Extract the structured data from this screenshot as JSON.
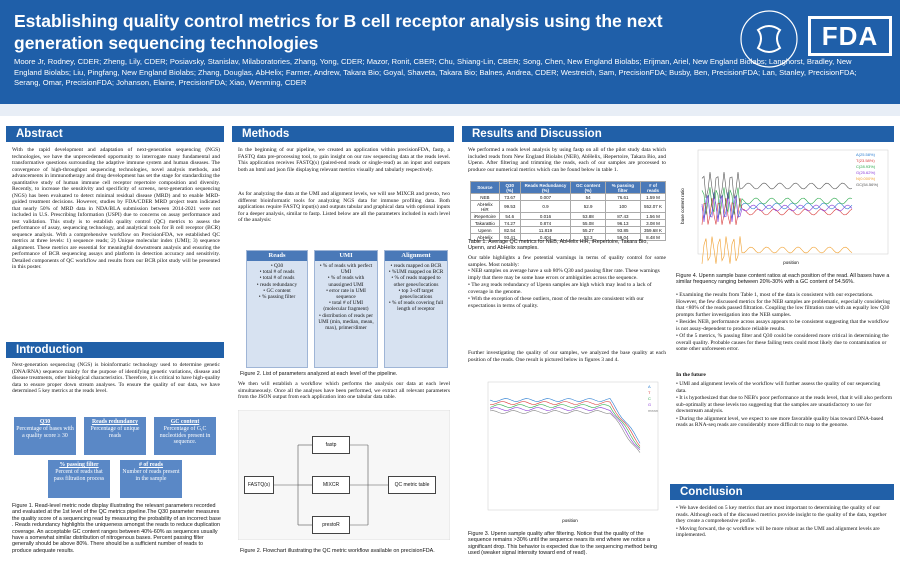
{
  "title": "Establishing quality control metrics for B cell receptor analysis using the next generation sequencing technologies",
  "authors": "Moore Jr, Rodney, CDER; Zheng, Lily, CDER; Posiavsky, Stanislav, Milaboratories, Zhang, Yong, CDER; Mazor, Ronit, CBER; Chu, Shiang-Lin, CBER; Song, Chen, New England Biolabs; Erijman, Ariel, New England Biolabs; Langhorst, Bradley, New England Biolabs; Liu, Pingfang, New England Biolabs; Zhang, Douglas, AbHelix; Farmer, Andrew, Takara Bio; Goyal, Shaveta, Takara Bio; Balnes, Andrea, CDER; Westreich, Sam, PrecisionFDA; Busby, Ben, PrecisionFDA; Lan, Stanley, PrecisionFDA; Serang, Omar, PrecisionFDA; Johanson, Elaine, PrecisionFDA; Xiao, Wenming, CDER",
  "logo": "FDA",
  "sections": {
    "abstract": "Abstract",
    "intro": "Introduction",
    "methods": "Methods",
    "results": "Results and Discussion",
    "conclusion": "Conclusion"
  },
  "abstract_text": "With the rapid development and adaptation of next-generation sequencing (NGS) technologies, we have the unprecedented opportunity to interrogate many fundamental and transformative questions surrounding the adaptive immune system and human diseases. The convergence of high-throughput sequencing technologies, novel analysis methods, and advancements in immunotherapy and drug development has set the stage for standardizing the quantitative study of human immune cell receptor repertoire composition and diversity. Recently, to increase the sensitivity and specificity of screens, next-generation sequencing (NGS) has been evaluated to detect minimal residual disease (MRD) and to enable MRD-guided treatment decisions. However, studies by FDA/CDER MRD project team indicated that nearly 50% of MRD data in NDA/BLA submission between 2014-2021 were not included in U.S. Prescribing Information (USPI) due to concerns on assay performance and test validation. This study is to establish quality control (QC) metrics to assess the performance of assay, sequencing technology, and analytical tools for B cell receptor (BCR) sequence analysis. With a comprehensive workflow on PrecisionFDA, we established QC metrics at three levels: 1) sequence reads; 2) Unique molecular index (UMI); 3) sequence alignment. These metrics are essential for meaningful downstream analysis and ensuring the performance of BCR sequencing assays and platform in detection accuracy and sensitivity. Detailed components of QC workflow and results from our BCR pilot study will be presented in this poster.",
  "intro_text": "Next-generation sequencing (NGS) is bioinformatic technology used to determine genetic (DNA/RNA) sequence mainly for the purpose of identifying genetic variations, disease and disease treatments, other biological characteristics. Therefore, it is critical to have high-quality data to ensure proper down stream analyses. To ensure the quality of our data, we have determined 5 key metrics at the reads level.",
  "metric_boxes": [
    {
      "h": "Q30",
      "t": "Percentage of bases with a quality score ≥ 30"
    },
    {
      "h": "Reads redundancy",
      "t": "Percentage of unique reads"
    },
    {
      "h": "GC content",
      "t": "Percentage of G,C nucleotides present in sequence."
    },
    {
      "h": "% passing filter",
      "t": "Percent of reads that pass filtration process"
    },
    {
      "h": "# of reads",
      "t": "Number of reads present in the sample"
    }
  ],
  "fig1_caption": "Figure 1. Read-level metric node display illustrating the relevant parameters recorded and evaluated at the 1st level of the QC metrics pipeline.The Q30 parameter measures the quality score of a sequencing read by measuring the probability of an incorrect base . Reads redundancy highlights the uniqueness amongst the reads to reduce duplication coverage. An acceptable GC content ranges between 40%-60% as sequences usually have a somewhat similar distribution of nitrogenous bases. Percent passing filter generally should be above 80%. There should be a sufficient number of reads to produce adequate results.",
  "methods_text": "In the beginning of our pipeline, we created an application within precisionFDA, fastp, a FASTQ data pre-processing tool, to gain insight on our raw sequencing data at the reads level. This application receives FASTQ(s) (paired-end reads or single-read) as an input and outputs both an html and json file displaying relevant metrics visually and tabularly respectively.",
  "methods_text2": "As for analyzing the data at the UMI and alignment levels, we will use MIXCR and presto, two different bioinformatic tools for analyzing NGS data for immune profiling data. Both applications require FASTQ input(s) and outputs tabular and graphical data with optional inputs for a deeper analysis, similar to fastp. Listed below are all the parameters included in each level of the analysis:",
  "param_cols": [
    {
      "h": "Reads",
      "items": [
        "• Q30",
        "• total # of reads",
        "• total # of reads",
        "• reads redundancy",
        "• GC content",
        "• % passing filter"
      ]
    },
    {
      "h": "UMI",
      "items": [
        "• % of reads with perfect UMI",
        "• % of reads with unassigned UMI",
        "• error rate in UMI sequence",
        "• total # of UMI (molecular fragment)",
        "• distribution of reads per UMI (min, median, mean, max), primer/dimer"
      ]
    },
    {
      "h": "Alignment",
      "items": [
        "• reads mapped on BCR",
        "• %UMI mapped on BCR",
        "• % of reads mapped to other genes/locations",
        "• top 3-off target genes/locations",
        "• % of reads covering full length of receptor"
      ]
    }
  ],
  "fig2a_caption": "Figure 2. List of parameters analyzed at each level of the pipeline.",
  "methods_text3": "We then will establish a workflow which performs the analysis our data at each level simultaneously. Once all the analyses have been performed, we extract all relevant parameters from the JSON output from each application into one tabular data table.",
  "flow": {
    "fastq": "FASTQ(s)",
    "fastp": "fastp",
    "mixcr": "MIXCR",
    "presto": "prestoR",
    "qc": "QC metric table"
  },
  "fig2_caption": "Figure 2. Flowchart illustrating the QC metric workflow available on precisionFDA.",
  "results_text": "We performed a reads level analysis by using fastp on all of the pilot study data which included reads from New England Biolabs (NEB), AbHelix, iRepertoire, Takara Bio, and Upenn. After filtering and trimming the reads, each of our samples are processed to produce our numerical metrics which can be found below in table 1.",
  "table": {
    "headers": [
      "Source",
      "Q30 (%)",
      "Reads Redundancy (%)",
      "GC content (%)",
      "% passing filter",
      "# of reads"
    ],
    "rows": [
      [
        "NEB",
        "73.67",
        "0.007",
        "54",
        "76.61",
        "1.59 M"
      ],
      [
        "AbHelix HiR",
        "99.53",
        "0.9",
        "52.9",
        "100",
        "552.07 K"
      ],
      [
        "iRepertoire",
        "54.6",
        "0.016",
        "53.88",
        "87.43",
        "1.56 M"
      ],
      [
        "TakaraBio",
        "74.27",
        "0.874",
        "55.08",
        "96.13",
        "3.08 M"
      ],
      [
        "Upenn",
        "82.54",
        "11.819",
        "55.27",
        "93.85",
        "359.68 K"
      ],
      [
        "AbHelix",
        "93.41",
        "0.404",
        "53.3",
        "59.04",
        "8.48 M"
      ]
    ]
  },
  "table_caption": "Table 1. Average QC metrics for NEB, AbHelix HiR, iRepertoire, Takara Bio, Upenn, and AbHelix samples.",
  "results_text2": "Our table highlights a few potential warnings in terms of quality control for some samples. Most notably:",
  "results_bullets": [
    "• NEB samples on average have a sub 80% Q30 and passing filter rate. These warnings imply that there may be some base errors or ambiguities across the sequence.",
    "• The avg reads redundancy of Upenn samples are high which may lead to a lack of coverage in the genome.",
    "• With the exception of these outliers, most of the results are consistent with our expectations in terms of quality."
  ],
  "results_text3": "Further investigating the quality of our samples, we analyzed the base quality at each position of the reads. One result is pictured below in figures 3 and 4.",
  "fig3_caption": "Figure 3. Upenn sample quality after filtering. Notice that the quality of the sequence remains >30% until the sequence nears its end where we notice a significant drop. This behavior is expected due to the sequencing method being used (weaker signal intensity toward end of read).",
  "fig4_caption": "Figure 4. Upenn sample base content ratios at each position of the read. All bases have a similar frequency ranging between 20%-30% with a GC content of 54.56%.",
  "results_bullets2": [
    "• Examining the results from Table 1, most of the data is consistent with our expectations. However, the few discussed metrics for the NEB samples are problematic, especially considering that <80% of the reads passed filtration. Coupling the low filtration rate with an equally low Q30 prompts further investigation into the NEB samples.",
    "• Besides NEB, performance across assays appears to be consistent suggesting that the workflow is not assay-dependent to produce reliable results.",
    "• Of the 5 metrics, % passing filter and Q30 could be considered more critical in determining the overall quality. Probable causes for these failing tests could most likely due to contamination or some other unforeseen error."
  ],
  "future_h": "In the future",
  "future_bullets": [
    "• UMI and alignment levels of the workflow will further assess the quality of our sequencing data.",
    "• It is hypothesized that due to NEB's poor performance at the reads level, that it will also perform sub-optimally at these levels too suggesting that the samples are unsatisfactory to use for downstream analysis.",
    "• During the alignment level, we expect to see more favorable quality bias toward DNA-based reads as RNA-seq reads are considerably more difficult to map to the genome."
  ],
  "conclusion_bullets": [
    "• We have decided on 5 key metrics that are most important to determining the quality of our reads. Although each of the discussed metrics provide insight to the quality of the data, together they create a comprehensive profile.",
    "• Moving forward, the qc workflow will be more robust as the UMI and alignment levels are implemented."
  ],
  "chart_data": [
    {
      "type": "line",
      "title": "",
      "xlabel": "position",
      "ylabel": "",
      "series": [
        {
          "name": "A",
          "values": []
        },
        {
          "name": "T",
          "values": []
        },
        {
          "name": "C",
          "values": []
        },
        {
          "name": "G",
          "values": []
        },
        {
          "name": "mean",
          "values": []
        }
      ]
    },
    {
      "type": "line",
      "title": "",
      "xlabel": "position",
      "ylabel": "base content ratio",
      "series": [
        {
          "name": "A(25.58%)",
          "values": []
        },
        {
          "name": "T(23.58%)",
          "values": []
        },
        {
          "name": "C(28.93%)",
          "values": []
        },
        {
          "name": "G(25.62%)",
          "values": []
        },
        {
          "name": "N(0.000%)",
          "values": []
        },
        {
          "name": "GC(54.56%)",
          "values": []
        }
      ]
    }
  ]
}
